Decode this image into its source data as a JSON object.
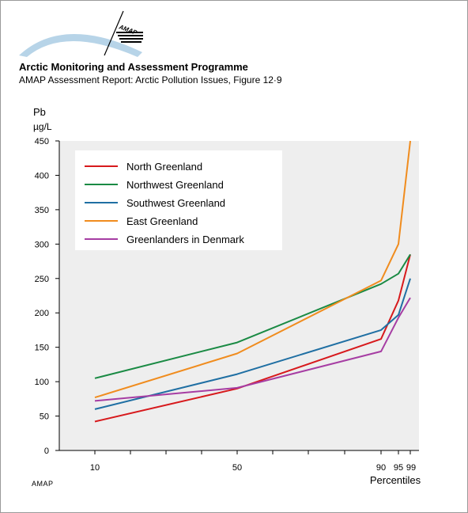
{
  "header": {
    "logo_text": "AMAP",
    "org_title": "Arctic Monitoring and Assessment Programme",
    "report_title": "AMAP Assessment Report: Arctic Pollution Issues, Figure 12·9"
  },
  "footer": {
    "mark": "AMAP"
  },
  "colors": {
    "north_greenland": "#d7191c",
    "northwest_greenland": "#1a8a44",
    "southwest_greenland": "#1f6fa3",
    "east_greenland": "#f08c1e",
    "greenlanders_denmark": "#a63da3",
    "plot_background": "#eeeeee",
    "legend_background": "#ffffff"
  },
  "chart_data": {
    "type": "line",
    "title": "",
    "ylabel_line1": "Pb",
    "ylabel_line2": "µg/L",
    "xlabel": "Percentiles",
    "ylim": [
      0,
      450
    ],
    "yticks": [
      "0",
      "50",
      "100",
      "150",
      "200",
      "250",
      "300",
      "350",
      "400",
      "450"
    ],
    "xticks": [
      "10",
      "50",
      "90",
      "95",
      "99"
    ],
    "grid": false,
    "legend_position": "top-left",
    "x": [
      10,
      50,
      90,
      95,
      99
    ],
    "series": [
      {
        "name": "North Greenland",
        "color": "#d7191c",
        "values": [
          42,
          90,
          162,
          218,
          285
        ]
      },
      {
        "name": "Northwest Greenland",
        "color": "#1a8a44",
        "values": [
          105,
          157,
          242,
          257,
          285
        ]
      },
      {
        "name": "Southwest Greenland",
        "color": "#1f6fa3",
        "values": [
          60,
          111,
          175,
          197,
          250
        ]
      },
      {
        "name": "East Greenland",
        "color": "#f08c1e",
        "values": [
          77,
          141,
          247,
          300,
          450
        ]
      },
      {
        "name": "Greenlanders in Denmark",
        "color": "#a63da3",
        "values": [
          72,
          91,
          144,
          193,
          222
        ]
      }
    ]
  }
}
